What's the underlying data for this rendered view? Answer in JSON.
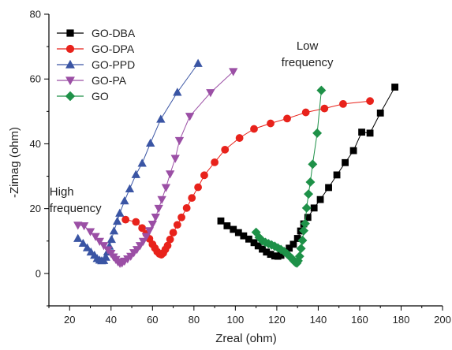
{
  "chart_data": {
    "type": "scatter",
    "xlabel": "Zreal (ohm)",
    "ylabel": "-Zimag (ohm)",
    "xlim": [
      10,
      200
    ],
    "ylim": [
      -10,
      80
    ],
    "xticks": [
      20,
      40,
      60,
      80,
      100,
      120,
      140,
      160,
      180,
      200
    ],
    "yticks": [
      0,
      20,
      40,
      60,
      80
    ],
    "grid": false,
    "legend_position": "top-left",
    "annotations": [
      {
        "id": "high",
        "lines": [
          "High",
          "frequency"
        ],
        "x": 10.3,
        "y": 24
      },
      {
        "id": "low",
        "lines": [
          "Low",
          "frequency"
        ],
        "x": 122.2,
        "y": 69
      }
    ],
    "series": [
      {
        "name": "GO-DBA",
        "color": "#000000",
        "marker": "square",
        "points": [
          [
            93,
            16.2
          ],
          [
            96,
            14.7
          ],
          [
            99,
            13.6
          ],
          [
            101.5,
            12.6
          ],
          [
            104,
            11.6
          ],
          [
            106.5,
            10.6
          ],
          [
            109,
            9.5
          ],
          [
            111,
            8.5
          ],
          [
            113,
            7.5
          ],
          [
            115,
            6.6
          ],
          [
            117,
            5.9
          ],
          [
            119,
            5.4
          ],
          [
            120.5,
            5.3
          ],
          [
            122,
            5.6
          ],
          [
            124,
            6.6
          ],
          [
            126,
            7.8
          ],
          [
            128,
            9.0
          ],
          [
            130,
            10.8
          ],
          [
            131.5,
            13.1
          ],
          [
            133,
            15.3
          ],
          [
            135,
            17.3
          ],
          [
            138,
            20.2
          ],
          [
            141,
            22.8
          ],
          [
            145,
            26.5
          ],
          [
            149,
            30.4
          ],
          [
            153,
            34.2
          ],
          [
            157,
            37.9
          ],
          [
            161,
            43.6
          ],
          [
            165,
            43.3
          ],
          [
            170,
            49.5
          ],
          [
            177,
            57.5
          ]
        ]
      },
      {
        "name": "GO-DPA",
        "color": "#e8221b",
        "marker": "circle",
        "points": [
          [
            47,
            16.6
          ],
          [
            52,
            15.9
          ],
          [
            55,
            14.0
          ],
          [
            57,
            12.2
          ],
          [
            58.5,
            10.7
          ],
          [
            60,
            9.0
          ],
          [
            61.2,
            7.8
          ],
          [
            62.3,
            6.7
          ],
          [
            63.4,
            6.0
          ],
          [
            64.3,
            5.8
          ],
          [
            65.2,
            6.3
          ],
          [
            66.2,
            7.4
          ],
          [
            67.3,
            8.6
          ],
          [
            68.5,
            10.5
          ],
          [
            70,
            12.6
          ],
          [
            72,
            15.0
          ],
          [
            74,
            17.3
          ],
          [
            76.5,
            20.2
          ],
          [
            79,
            23.3
          ],
          [
            82,
            26.6
          ],
          [
            85,
            30.3
          ],
          [
            90,
            34.3
          ],
          [
            95,
            38.2
          ],
          [
            102,
            41.8
          ],
          [
            109,
            44.6
          ],
          [
            117,
            46.3
          ],
          [
            125,
            47.8
          ],
          [
            134,
            49.7
          ],
          [
            143,
            50.9
          ],
          [
            152,
            52.3
          ],
          [
            165,
            53.2
          ]
        ]
      },
      {
        "name": "GO-PPD",
        "color": "#3a55a4",
        "marker": "triangle-up",
        "points": [
          [
            24,
            10.8
          ],
          [
            26.5,
            9.3
          ],
          [
            28.5,
            7.9
          ],
          [
            30.3,
            6.6
          ],
          [
            32,
            5.6
          ],
          [
            33.3,
            4.6
          ],
          [
            34.5,
            4.1
          ],
          [
            35.5,
            3.9
          ],
          [
            36.5,
            4.0
          ],
          [
            37.5,
            5.0
          ],
          [
            38.3,
            6.6
          ],
          [
            39.2,
            8.4
          ],
          [
            40.2,
            10.5
          ],
          [
            41.4,
            13.1
          ],
          [
            43,
            16.1
          ],
          [
            44.2,
            18.6
          ],
          [
            46.5,
            22.4
          ],
          [
            49,
            26.1
          ],
          [
            52,
            30.5
          ],
          [
            55,
            34.0
          ],
          [
            59,
            40.2
          ],
          [
            64,
            47.6
          ],
          [
            72,
            55.9
          ],
          [
            82,
            64.8
          ]
        ]
      },
      {
        "name": "GO-PA",
        "color": "#9b4fa5",
        "marker": "triangle-down",
        "points": [
          [
            24,
            14.9
          ],
          [
            27,
            14.7
          ],
          [
            30,
            12.9
          ],
          [
            32.5,
            11.4
          ],
          [
            34.5,
            9.9
          ],
          [
            36.5,
            8.6
          ],
          [
            38.5,
            7.3
          ],
          [
            40,
            6.2
          ],
          [
            41.2,
            5.1
          ],
          [
            42.3,
            4.3
          ],
          [
            43.3,
            3.6
          ],
          [
            44.3,
            3.1
          ],
          [
            45.3,
            3.2
          ],
          [
            46.5,
            3.8
          ],
          [
            48,
            4.5
          ],
          [
            49.5,
            5.3
          ],
          [
            51,
            6.4
          ],
          [
            52.5,
            7.4
          ],
          [
            54,
            8.6
          ],
          [
            55.5,
            9.9
          ],
          [
            57,
            11.4
          ],
          [
            58.5,
            13.2
          ],
          [
            60,
            15.2
          ],
          [
            61.5,
            17.4
          ],
          [
            63,
            20.1
          ],
          [
            64.5,
            22.8
          ],
          [
            66.5,
            26.5
          ],
          [
            68.5,
            30.7
          ],
          [
            71,
            35.5
          ],
          [
            73,
            41.0
          ],
          [
            78,
            48.5
          ],
          [
            88,
            55.8
          ],
          [
            99,
            62.3
          ]
        ]
      },
      {
        "name": "GO",
        "color": "#1e9148",
        "marker": "diamond",
        "points": [
          [
            110,
            12.7
          ],
          [
            111.5,
            11.1
          ],
          [
            113,
            10.1
          ],
          [
            114.5,
            9.6
          ],
          [
            116,
            9.2
          ],
          [
            117.5,
            8.8
          ],
          [
            119,
            8.4
          ],
          [
            120.5,
            7.9
          ],
          [
            122,
            7.4
          ],
          [
            123.5,
            6.8
          ],
          [
            125,
            6.0
          ],
          [
            126.3,
            5.2
          ],
          [
            127.3,
            4.6
          ],
          [
            128.2,
            3.9
          ],
          [
            129,
            3.4
          ],
          [
            129.7,
            3.2
          ],
          [
            130.3,
            3.9
          ],
          [
            131,
            5.3
          ],
          [
            131.7,
            7.7
          ],
          [
            132.4,
            10.2
          ],
          [
            133,
            13.2
          ],
          [
            133.7,
            15.4
          ],
          [
            134.4,
            20.2
          ],
          [
            135.3,
            24.5
          ],
          [
            136.2,
            28.2
          ],
          [
            137.3,
            33.7
          ],
          [
            139.5,
            43.3
          ],
          [
            141.5,
            56.5
          ]
        ]
      }
    ]
  }
}
